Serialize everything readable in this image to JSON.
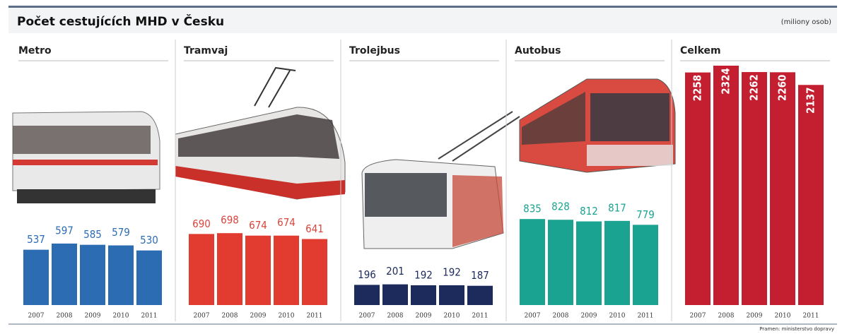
{
  "title": "Počet cestujících MHD v Česku",
  "unit": "(miliony osob)",
  "source": "Pramen: ministerstvo dopravy",
  "chart_data": [
    {
      "type": "bar",
      "title": "Metro",
      "categories": [
        "2007",
        "2008",
        "2009",
        "2010",
        "2011"
      ],
      "values": [
        537,
        597,
        585,
        579,
        530
      ],
      "color": "#2b6cb3",
      "label_color": "#2b6cb3"
    },
    {
      "type": "bar",
      "title": "Tramvaj",
      "categories": [
        "2007",
        "2008",
        "2009",
        "2010",
        "2011"
      ],
      "values": [
        690,
        698,
        674,
        674,
        641
      ],
      "color": "#e23b2f",
      "label_color": "#d9463c"
    },
    {
      "type": "bar",
      "title": "Trolejbus",
      "categories": [
        "2007",
        "2008",
        "2009",
        "2010",
        "2011"
      ],
      "values": [
        196,
        201,
        192,
        192,
        187
      ],
      "color": "#1d2b5c",
      "label_color": "#1d2b5c"
    },
    {
      "type": "bar",
      "title": "Autobus",
      "categories": [
        "2007",
        "2008",
        "2009",
        "2010",
        "2011"
      ],
      "values": [
        835,
        828,
        812,
        817,
        779
      ],
      "color": "#1aa390",
      "label_color": "#1aa390"
    },
    {
      "type": "bar",
      "title": "Celkem",
      "categories": [
        "2007",
        "2008",
        "2009",
        "2010",
        "2011"
      ],
      "values": [
        2258,
        2324,
        2262,
        2260,
        2137
      ],
      "color": "#c41f30",
      "label_color": "#ffffff",
      "labels_inside": true
    }
  ]
}
